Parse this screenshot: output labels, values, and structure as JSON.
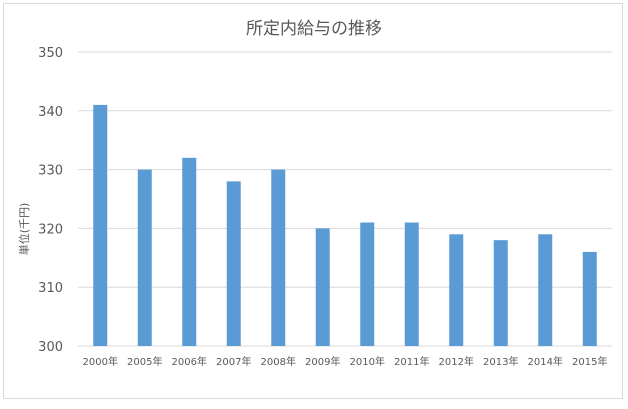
{
  "chart_data": {
    "type": "bar",
    "title": "所定内給与の推移",
    "xlabel": "",
    "ylabel": "単位(千円)",
    "categories": [
      "2000年",
      "2005年",
      "2006年",
      "2007年",
      "2008年",
      "2009年",
      "2010年",
      "2011年",
      "2012年",
      "2013年",
      "2014年",
      "2015年"
    ],
    "series": [
      {
        "values": [
          341,
          330,
          332,
          328,
          330,
          320,
          321,
          321,
          319,
          318,
          319,
          316
        ],
        "color": "#5b9bd5"
      }
    ],
    "ylim": [
      300,
      350
    ],
    "yticks": [
      300,
      310,
      320,
      330,
      340,
      350
    ],
    "grid": true,
    "legend": "none"
  }
}
